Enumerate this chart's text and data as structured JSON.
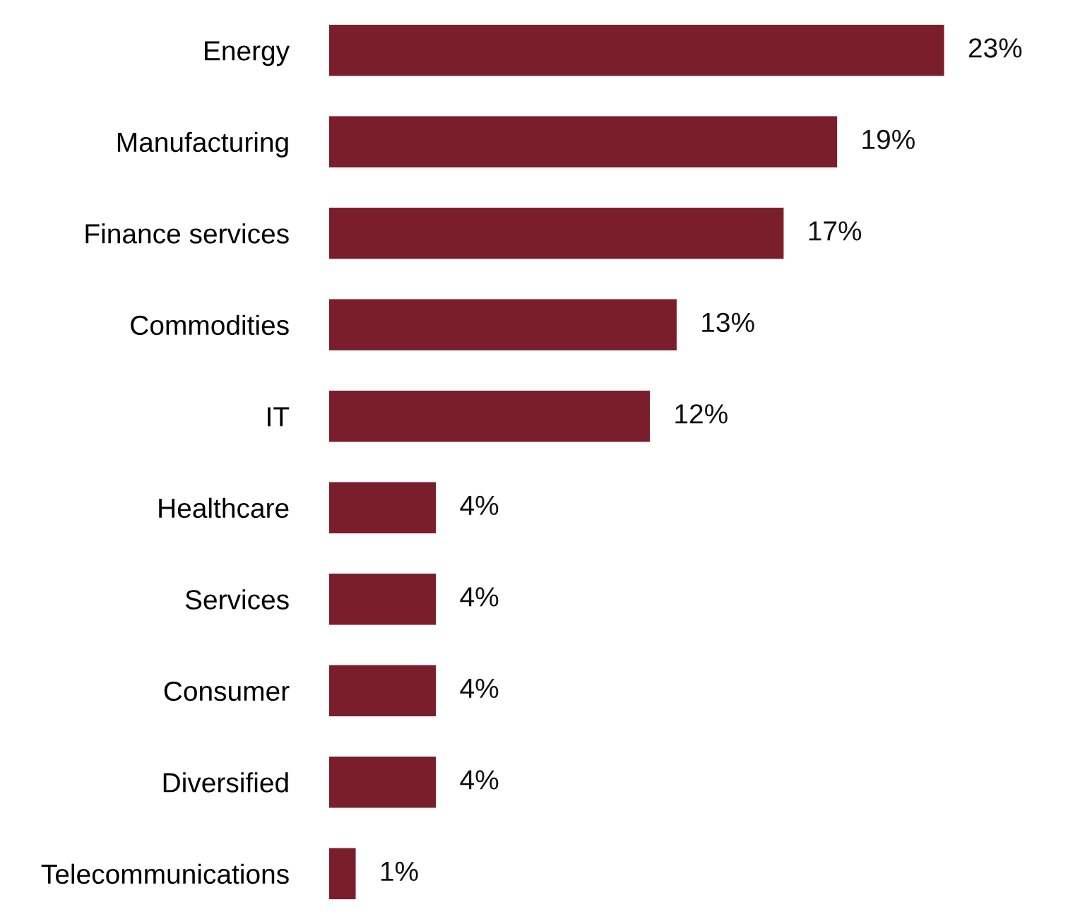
{
  "chart_data": {
    "type": "bar",
    "orientation": "horizontal",
    "categories": [
      "Energy",
      "Manufacturing",
      "Finance services",
      "Commodities",
      "IT",
      "Healthcare",
      "Services",
      "Consumer",
      "Diversified",
      "Telecommunications"
    ],
    "values": [
      23,
      19,
      17,
      13,
      12,
      4,
      4,
      4,
      4,
      1
    ],
    "value_labels": [
      "23%",
      "19%",
      "17%",
      "13%",
      "12%",
      "4%",
      "4%",
      "4%",
      "4%",
      "1%"
    ],
    "color": "#7b1e2b",
    "grid": false,
    "legend": false
  }
}
